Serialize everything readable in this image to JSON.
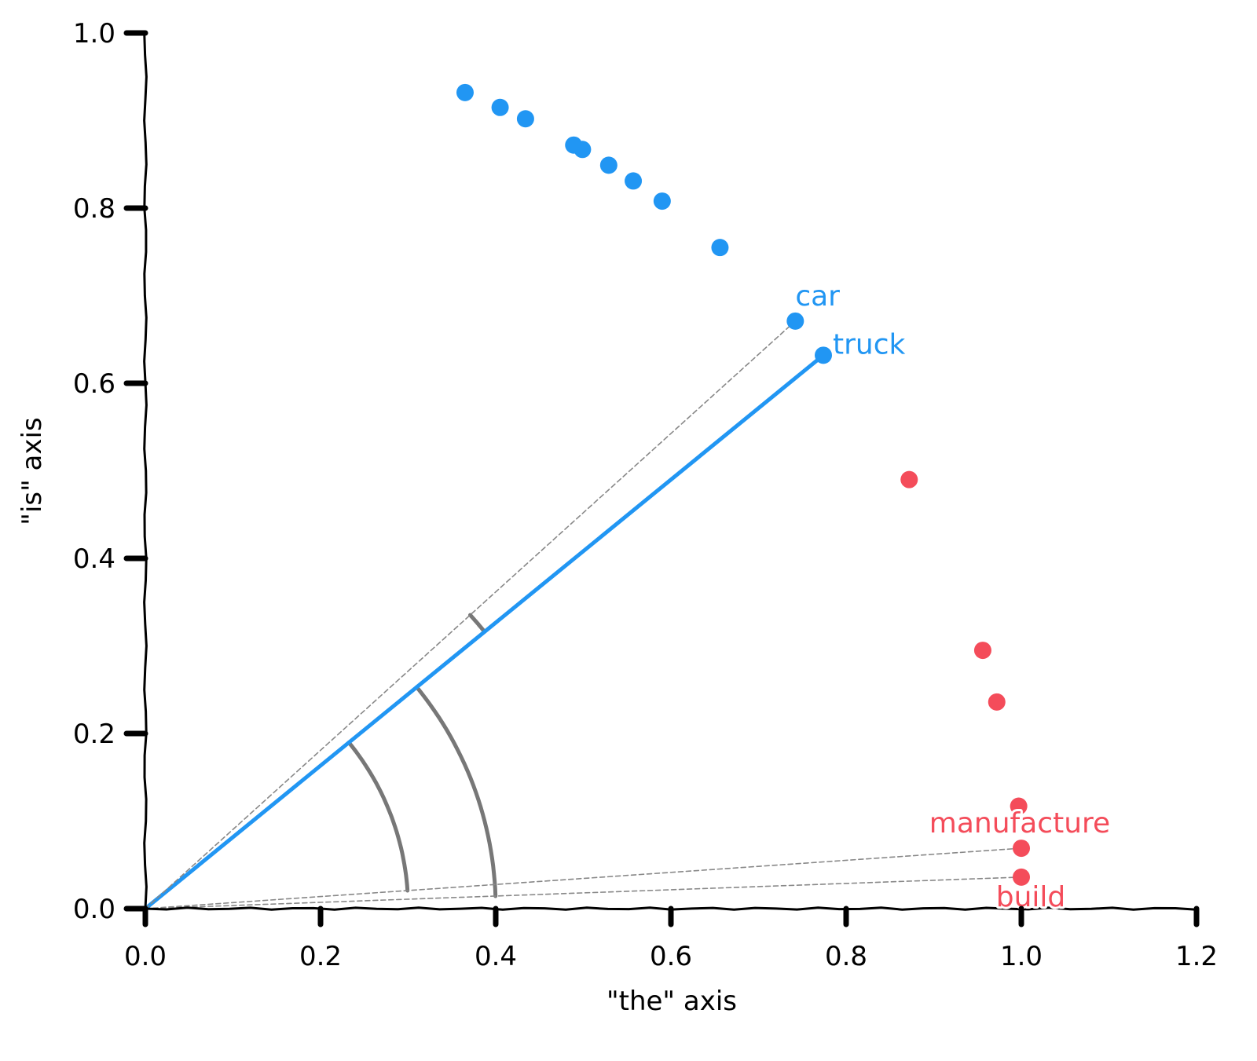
{
  "chart_data": {
    "type": "scatter",
    "xlabel": "\"the\" axis",
    "ylabel": "\"is\" axis",
    "xlim": [
      0.0,
      1.2
    ],
    "ylim": [
      0.0,
      1.0
    ],
    "x_ticks": [
      "0.0",
      "0.2",
      "0.4",
      "0.6",
      "0.8",
      "1.0",
      "1.2"
    ],
    "y_ticks": [
      "0.0",
      "0.2",
      "0.4",
      "0.6",
      "0.8",
      "1.0"
    ],
    "grid": false,
    "colors": {
      "blue": "#2196f3",
      "red": "#f44c5a",
      "angle": "#777777",
      "dashed": "#888888"
    },
    "series": [
      {
        "color": "#2196f3",
        "points": [
          {
            "x": 0.365,
            "y": 0.932
          },
          {
            "x": 0.405,
            "y": 0.915
          },
          {
            "x": 0.434,
            "y": 0.902
          },
          {
            "x": 0.489,
            "y": 0.872
          },
          {
            "x": 0.499,
            "y": 0.867
          },
          {
            "x": 0.529,
            "y": 0.849
          },
          {
            "x": 0.557,
            "y": 0.831
          },
          {
            "x": 0.59,
            "y": 0.808
          },
          {
            "x": 0.656,
            "y": 0.755
          },
          {
            "x": 0.742,
            "y": 0.671,
            "label": "car"
          },
          {
            "x": 0.774,
            "y": 0.632,
            "label": "truck"
          }
        ]
      },
      {
        "color": "#f44c5a",
        "points": [
          {
            "x": 0.872,
            "y": 0.49
          },
          {
            "x": 0.956,
            "y": 0.295
          },
          {
            "x": 0.972,
            "y": 0.236
          },
          {
            "x": 0.997,
            "y": 0.117
          },
          {
            "x": 1.0,
            "y": 0.069,
            "label": "manufacture"
          },
          {
            "x": 1.0,
            "y": 0.036,
            "label": "build"
          }
        ]
      }
    ],
    "vectors": [
      {
        "to": "truck",
        "style": "solid"
      },
      {
        "to": "car",
        "style": "dashed"
      },
      {
        "to": "manufacture",
        "style": "dashed"
      },
      {
        "to": "build",
        "style": "dashed"
      }
    ],
    "angle_arcs": [
      {
        "between": [
          "truck",
          "manufacture"
        ],
        "radius": 0.3
      },
      {
        "between": [
          "truck",
          "build"
        ],
        "radius": 0.4
      },
      {
        "between": [
          "truck",
          "car"
        ],
        "radius": 0.5
      }
    ]
  }
}
